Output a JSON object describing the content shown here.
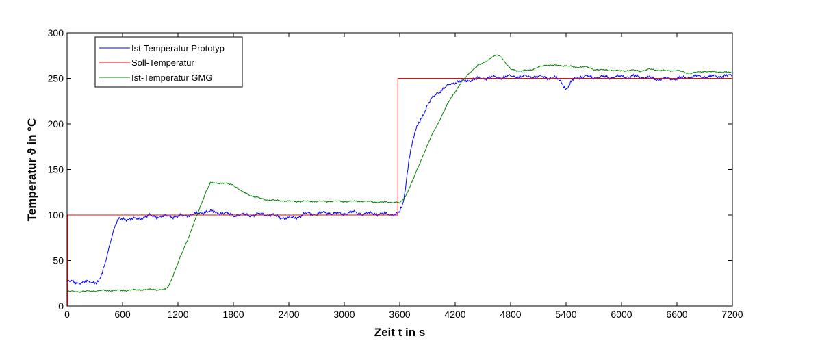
{
  "chart_data": {
    "type": "line",
    "xlabel": "Zeit t in s",
    "ylabel": "Temperatur ϑ in °C",
    "xlim": [
      0,
      7200
    ],
    "ylim": [
      0,
      300
    ],
    "xticks": [
      0,
      600,
      1200,
      1800,
      2400,
      3000,
      3600,
      4200,
      4800,
      5400,
      6000,
      6600,
      7200
    ],
    "yticks": [
      0,
      50,
      100,
      150,
      200,
      250,
      300
    ],
    "grid": false,
    "legend_position": "top-left",
    "series": [
      {
        "name": "Ist-Temperatur Prototyp",
        "color": "#0000ff",
        "noise": 2.2,
        "points": [
          [
            0,
            27
          ],
          [
            100,
            26
          ],
          [
            250,
            26
          ],
          [
            340,
            27
          ],
          [
            380,
            35
          ],
          [
            420,
            50
          ],
          [
            470,
            72
          ],
          [
            520,
            88
          ],
          [
            560,
            95
          ],
          [
            600,
            96
          ],
          [
            700,
            95
          ],
          [
            800,
            97
          ],
          [
            900,
            99
          ],
          [
            1000,
            98
          ],
          [
            1100,
            99
          ],
          [
            1200,
            98
          ],
          [
            1300,
            100
          ],
          [
            1400,
            101
          ],
          [
            1500,
            104
          ],
          [
            1600,
            103
          ],
          [
            1700,
            102
          ],
          [
            1800,
            100
          ],
          [
            1900,
            100
          ],
          [
            2000,
            100
          ],
          [
            2100,
            101
          ],
          [
            2200,
            100
          ],
          [
            2300,
            98
          ],
          [
            2400,
            96
          ],
          [
            2500,
            98
          ],
          [
            2600,
            102
          ],
          [
            2700,
            101
          ],
          [
            2800,
            103
          ],
          [
            2900,
            101
          ],
          [
            3000,
            102
          ],
          [
            3100,
            103
          ],
          [
            3200,
            101
          ],
          [
            3300,
            102
          ],
          [
            3400,
            101
          ],
          [
            3500,
            101
          ],
          [
            3560,
            101
          ],
          [
            3600,
            103
          ],
          [
            3630,
            110
          ],
          [
            3660,
            128
          ],
          [
            3700,
            162
          ],
          [
            3750,
            185
          ],
          [
            3800,
            200
          ],
          [
            3850,
            210
          ],
          [
            3900,
            220
          ],
          [
            3950,
            228
          ],
          [
            4000,
            234
          ],
          [
            4100,
            240
          ],
          [
            4150,
            244
          ],
          [
            4200,
            246
          ],
          [
            4300,
            247
          ],
          [
            4400,
            249
          ],
          [
            4600,
            251
          ],
          [
            4800,
            252
          ],
          [
            5000,
            252
          ],
          [
            5200,
            251
          ],
          [
            5300,
            250
          ],
          [
            5360,
            245
          ],
          [
            5400,
            238
          ],
          [
            5440,
            243
          ],
          [
            5500,
            251
          ],
          [
            5600,
            252
          ],
          [
            5800,
            251
          ],
          [
            6000,
            252
          ],
          [
            6200,
            252
          ],
          [
            6400,
            249
          ],
          [
            6600,
            250
          ],
          [
            6800,
            252
          ],
          [
            7000,
            252
          ],
          [
            7200,
            253
          ]
        ]
      },
      {
        "name": "Soll-Temperatur",
        "color": "#ff0000",
        "noise": 0,
        "points": [
          [
            0,
            0
          ],
          [
            8,
            0
          ],
          [
            8,
            100
          ],
          [
            3580,
            100
          ],
          [
            3580,
            250
          ],
          [
            7200,
            250
          ]
        ]
      },
      {
        "name": "Ist-Temperatur GMG",
        "color": "#008000",
        "noise": 0.9,
        "points": [
          [
            0,
            16
          ],
          [
            200,
            16
          ],
          [
            400,
            17
          ],
          [
            600,
            17
          ],
          [
            800,
            18
          ],
          [
            1000,
            18
          ],
          [
            1060,
            18
          ],
          [
            1100,
            22
          ],
          [
            1200,
            47
          ],
          [
            1300,
            72
          ],
          [
            1400,
            98
          ],
          [
            1500,
            125
          ],
          [
            1550,
            135
          ],
          [
            1600,
            135
          ],
          [
            1700,
            135
          ],
          [
            1800,
            133
          ],
          [
            1900,
            125
          ],
          [
            2000,
            121
          ],
          [
            2100,
            118
          ],
          [
            2200,
            116
          ],
          [
            2300,
            116
          ],
          [
            2400,
            115
          ],
          [
            2600,
            115
          ],
          [
            2800,
            115
          ],
          [
            3000,
            115
          ],
          [
            3200,
            115
          ],
          [
            3400,
            114
          ],
          [
            3550,
            114
          ],
          [
            3600,
            113
          ],
          [
            3650,
            118
          ],
          [
            3750,
            140
          ],
          [
            3850,
            165
          ],
          [
            3950,
            188
          ],
          [
            4050,
            208
          ],
          [
            4150,
            228
          ],
          [
            4250,
            243
          ],
          [
            4350,
            256
          ],
          [
            4450,
            264
          ],
          [
            4550,
            270
          ],
          [
            4650,
            276
          ],
          [
            4700,
            274
          ],
          [
            4750,
            266
          ],
          [
            4800,
            260
          ],
          [
            4900,
            258
          ],
          [
            5000,
            259
          ],
          [
            5100,
            262
          ],
          [
            5200,
            265
          ],
          [
            5300,
            264
          ],
          [
            5400,
            264
          ],
          [
            5500,
            262
          ],
          [
            5600,
            263
          ],
          [
            5700,
            260
          ],
          [
            5800,
            259
          ],
          [
            5900,
            259
          ],
          [
            6000,
            258
          ],
          [
            6100,
            259
          ],
          [
            6200,
            258
          ],
          [
            6300,
            260
          ],
          [
            6400,
            259
          ],
          [
            6500,
            258
          ],
          [
            6600,
            259
          ],
          [
            6700,
            256
          ],
          [
            6800,
            256
          ],
          [
            6900,
            258
          ],
          [
            7000,
            257
          ],
          [
            7100,
            257
          ],
          [
            7200,
            256
          ]
        ]
      }
    ]
  }
}
